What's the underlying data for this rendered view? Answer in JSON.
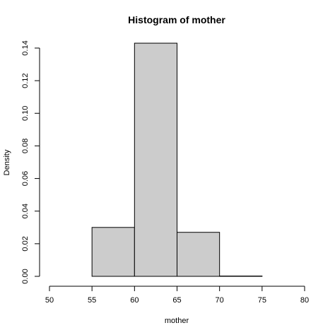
{
  "chart_data": {
    "type": "bar",
    "title": "Histogram of mother",
    "xlabel": "mother",
    "ylabel": "Density",
    "bins": [
      {
        "from": 55,
        "to": 60,
        "density": 0.03
      },
      {
        "from": 60,
        "to": 65,
        "density": 0.143
      },
      {
        "from": 65,
        "to": 70,
        "density": 0.027
      },
      {
        "from": 70,
        "to": 75,
        "density": 0.0002
      }
    ],
    "xlim": [
      50,
      80
    ],
    "ylim": [
      0,
      0.14
    ],
    "x_ticks": [
      "50",
      "55",
      "60",
      "65",
      "70",
      "75",
      "80"
    ],
    "y_ticks": [
      "0.00",
      "0.02",
      "0.04",
      "0.06",
      "0.08",
      "0.10",
      "0.12",
      "0.14"
    ],
    "bar_color": "#cccccc",
    "grid": false
  }
}
